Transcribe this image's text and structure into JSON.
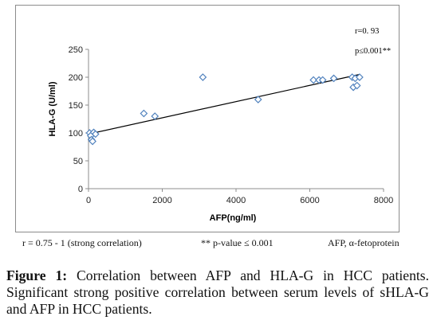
{
  "chart_data": {
    "type": "scatter",
    "title": "",
    "xlabel": "AFP(ng/ml)",
    "ylabel": "HLA-G (U/ml)",
    "xlim": [
      0,
      8000
    ],
    "ylim": [
      0,
      250
    ],
    "x_ticks": [
      0,
      2000,
      4000,
      6000,
      8000
    ],
    "y_ticks": [
      0,
      50,
      100,
      150,
      200,
      250
    ],
    "grid": false,
    "legend": "none",
    "points": [
      {
        "x": 30,
        "y": 100
      },
      {
        "x": 60,
        "y": 95
      },
      {
        "x": 80,
        "y": 88
      },
      {
        "x": 110,
        "y": 85
      },
      {
        "x": 140,
        "y": 101
      },
      {
        "x": 190,
        "y": 98
      },
      {
        "x": 1500,
        "y": 135
      },
      {
        "x": 1800,
        "y": 130
      },
      {
        "x": 3100,
        "y": 200
      },
      {
        "x": 4600,
        "y": 160
      },
      {
        "x": 6100,
        "y": 195
      },
      {
        "x": 6250,
        "y": 195
      },
      {
        "x": 6350,
        "y": 195
      },
      {
        "x": 6650,
        "y": 198
      },
      {
        "x": 7150,
        "y": 200
      },
      {
        "x": 7180,
        "y": 182
      },
      {
        "x": 7230,
        "y": 198
      },
      {
        "x": 7280,
        "y": 185
      },
      {
        "x": 7350,
        "y": 200
      }
    ],
    "trendline": {
      "x": [
        0,
        7350
      ],
      "y": [
        98,
        205
      ]
    },
    "annotations": [
      "r=0. 93",
      "p≤0.001**"
    ],
    "marker_color": "#4f81bd",
    "trendline_color": "#000000"
  },
  "footnotes": {
    "correlation_range": "r = 0.75 - 1 (strong correlation)",
    "p_value": "** p-value ≤ 0.001",
    "abbreviation": "AFP, α-fetoprotein"
  },
  "caption": {
    "label": "Figure 1:",
    "text": " Correlation between AFP and HLA-G in HCC patients. Significant strong positive correlation between serum levels of sHLA-G and AFP in HCC patients."
  }
}
